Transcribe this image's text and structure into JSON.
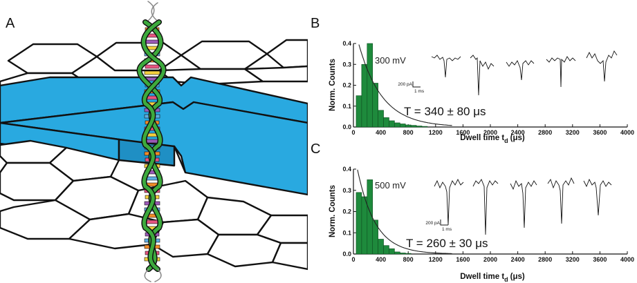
{
  "panels": {
    "a": "A",
    "b": "B",
    "c": "C"
  },
  "colors": {
    "membrane": "#29A9E0",
    "histogram": "#1E8A3C",
    "dna_backbone": "#3DAA3D"
  },
  "chart_data": [
    {
      "panel": "B",
      "type": "bar",
      "annotation_voltage": "300 mV",
      "annotation_fit": "T = 340 ± 80 μs",
      "xlabel": "Dwell time t",
      "xlabel_subscript": "d",
      "xlabel_unit": "(μs)",
      "ylabel": "Norm. Counts",
      "xlim": [
        0,
        4000
      ],
      "ylim": [
        0,
        0.4
      ],
      "xticks": [
        "0",
        "400",
        "800",
        "1200",
        "1600",
        "2000",
        "2400",
        "2800",
        "3200",
        "3600",
        "4000"
      ],
      "yticks": [
        "0.0",
        "0.1",
        "0.2",
        "0.3",
        "0.4"
      ],
      "bin_width": 80,
      "bin_starts": [
        40,
        120,
        200,
        280,
        360,
        440,
        520,
        600,
        680,
        760,
        840,
        920,
        1000
      ],
      "values": [
        0.15,
        0.3,
        0.4,
        0.21,
        0.08,
        0.045,
        0.03,
        0.02,
        0.015,
        0.01,
        0.008,
        0.005,
        0.003
      ],
      "fit": {
        "type": "exponential",
        "amplitude": 0.5,
        "tau": 340
      },
      "scale_bar": {
        "current": "200 pA",
        "time": "1 ms"
      }
    },
    {
      "panel": "C",
      "type": "bar",
      "annotation_voltage": "500 mV",
      "annotation_fit": "T = 260 ± 30 μs",
      "xlabel": "Dwell time t",
      "xlabel_subscript": "d",
      "xlabel_unit": "(μs)",
      "ylabel": "Norm. Counts",
      "xlim": [
        0,
        4000
      ],
      "ylim": [
        0,
        0.4
      ],
      "xticks": [
        "0",
        "400",
        "800",
        "1200",
        "1600",
        "2000",
        "2400",
        "2800",
        "3200",
        "3600",
        "4000"
      ],
      "yticks": [
        "0.0",
        "0.1",
        "0.2",
        "0.3",
        "0.4"
      ],
      "bin_width": 80,
      "bin_starts": [
        40,
        120,
        200,
        280,
        360,
        440,
        520,
        600,
        680,
        760
      ],
      "values": [
        0.29,
        0.27,
        0.35,
        0.16,
        0.07,
        0.04,
        0.025,
        0.01,
        0.005,
        0.003
      ],
      "fit": {
        "type": "exponential",
        "amplitude": 0.5,
        "tau": 260
      },
      "scale_bar": {
        "current": "200 pA",
        "time": "1 ms"
      }
    }
  ]
}
